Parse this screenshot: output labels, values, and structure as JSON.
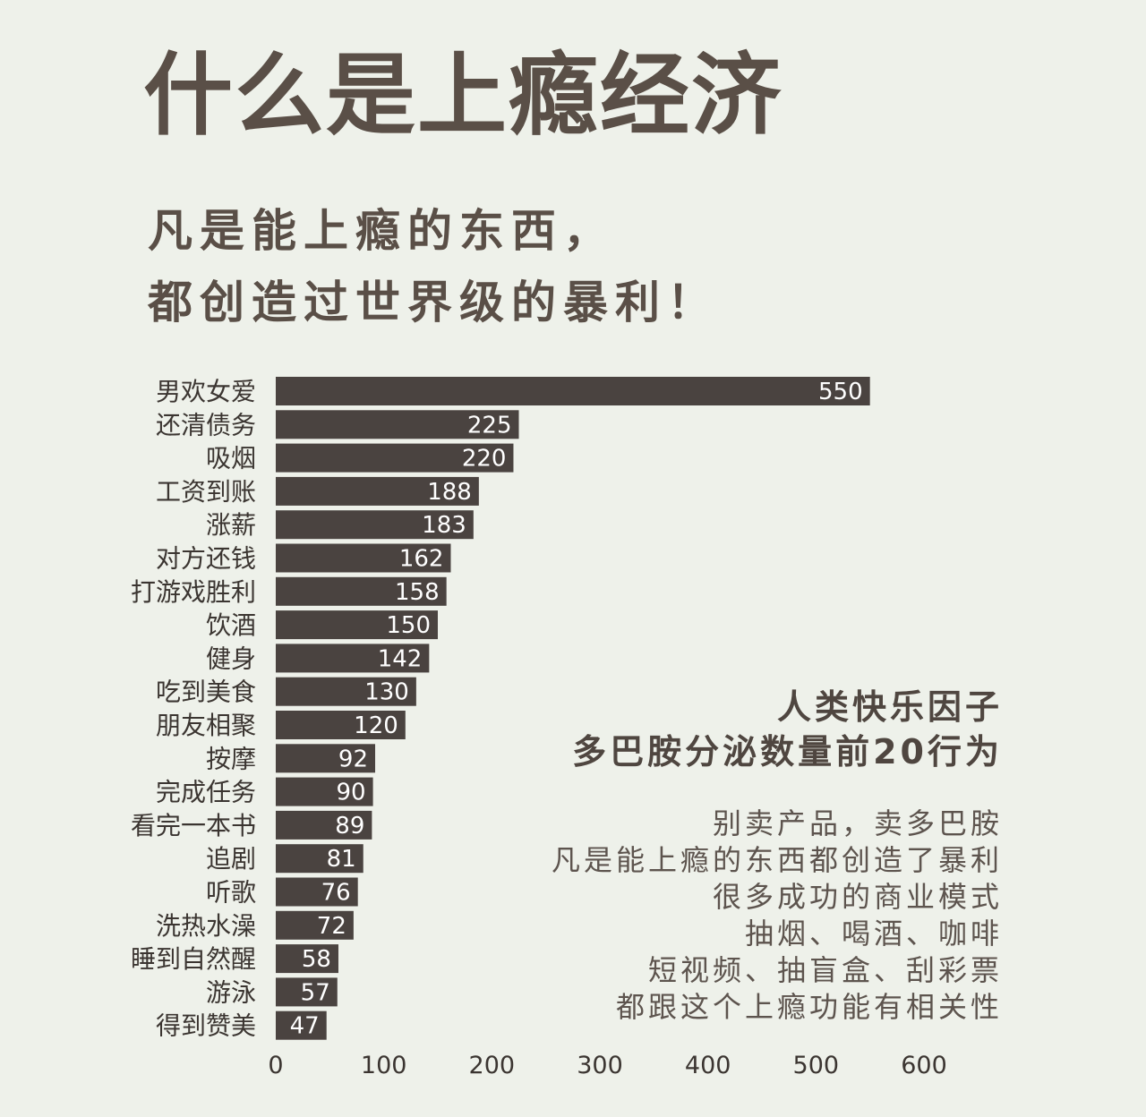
{
  "title": "什么是上瘾经济",
  "subtitle_lines": [
    "凡是能上瘾的东西，",
    "都创造过世界级的暴利！"
  ],
  "side_heading": [
    "人类快乐因子",
    "多巴胺分泌数量前20行为"
  ],
  "side_body": [
    "别卖产品，卖多巴胺",
    "凡是能上瘾的东西都创造了暴利",
    "很多成功的商业模式",
    "抽烟、喝酒、咖啡",
    "短视频、抽盲盒、刮彩票",
    "都跟这个上瘾功能有相关性"
  ],
  "colors": {
    "background": "#eef1ea",
    "bar": "#4a4340",
    "text": "#5a4f47"
  },
  "chart_data": {
    "type": "bar",
    "orientation": "horizontal",
    "categories": [
      "男欢女爱",
      "还清债务",
      "吸烟",
      "工资到账",
      "涨薪",
      "对方还钱",
      "打游戏胜利",
      "饮酒",
      "健身",
      "吃到美食",
      "朋友相聚",
      "按摩",
      "完成任务",
      "看完一本书",
      "追剧",
      "听歌",
      "洗热水澡",
      "睡到自然醒",
      "游泳",
      "得到赞美"
    ],
    "values": [
      550,
      225,
      220,
      188,
      183,
      162,
      158,
      150,
      142,
      130,
      120,
      92,
      90,
      89,
      81,
      76,
      72,
      58,
      57,
      47
    ],
    "x_ticks": [
      0,
      100,
      200,
      300,
      400,
      500,
      600
    ],
    "xlim": [
      0,
      600
    ],
    "grid": false,
    "data_labels": true
  }
}
